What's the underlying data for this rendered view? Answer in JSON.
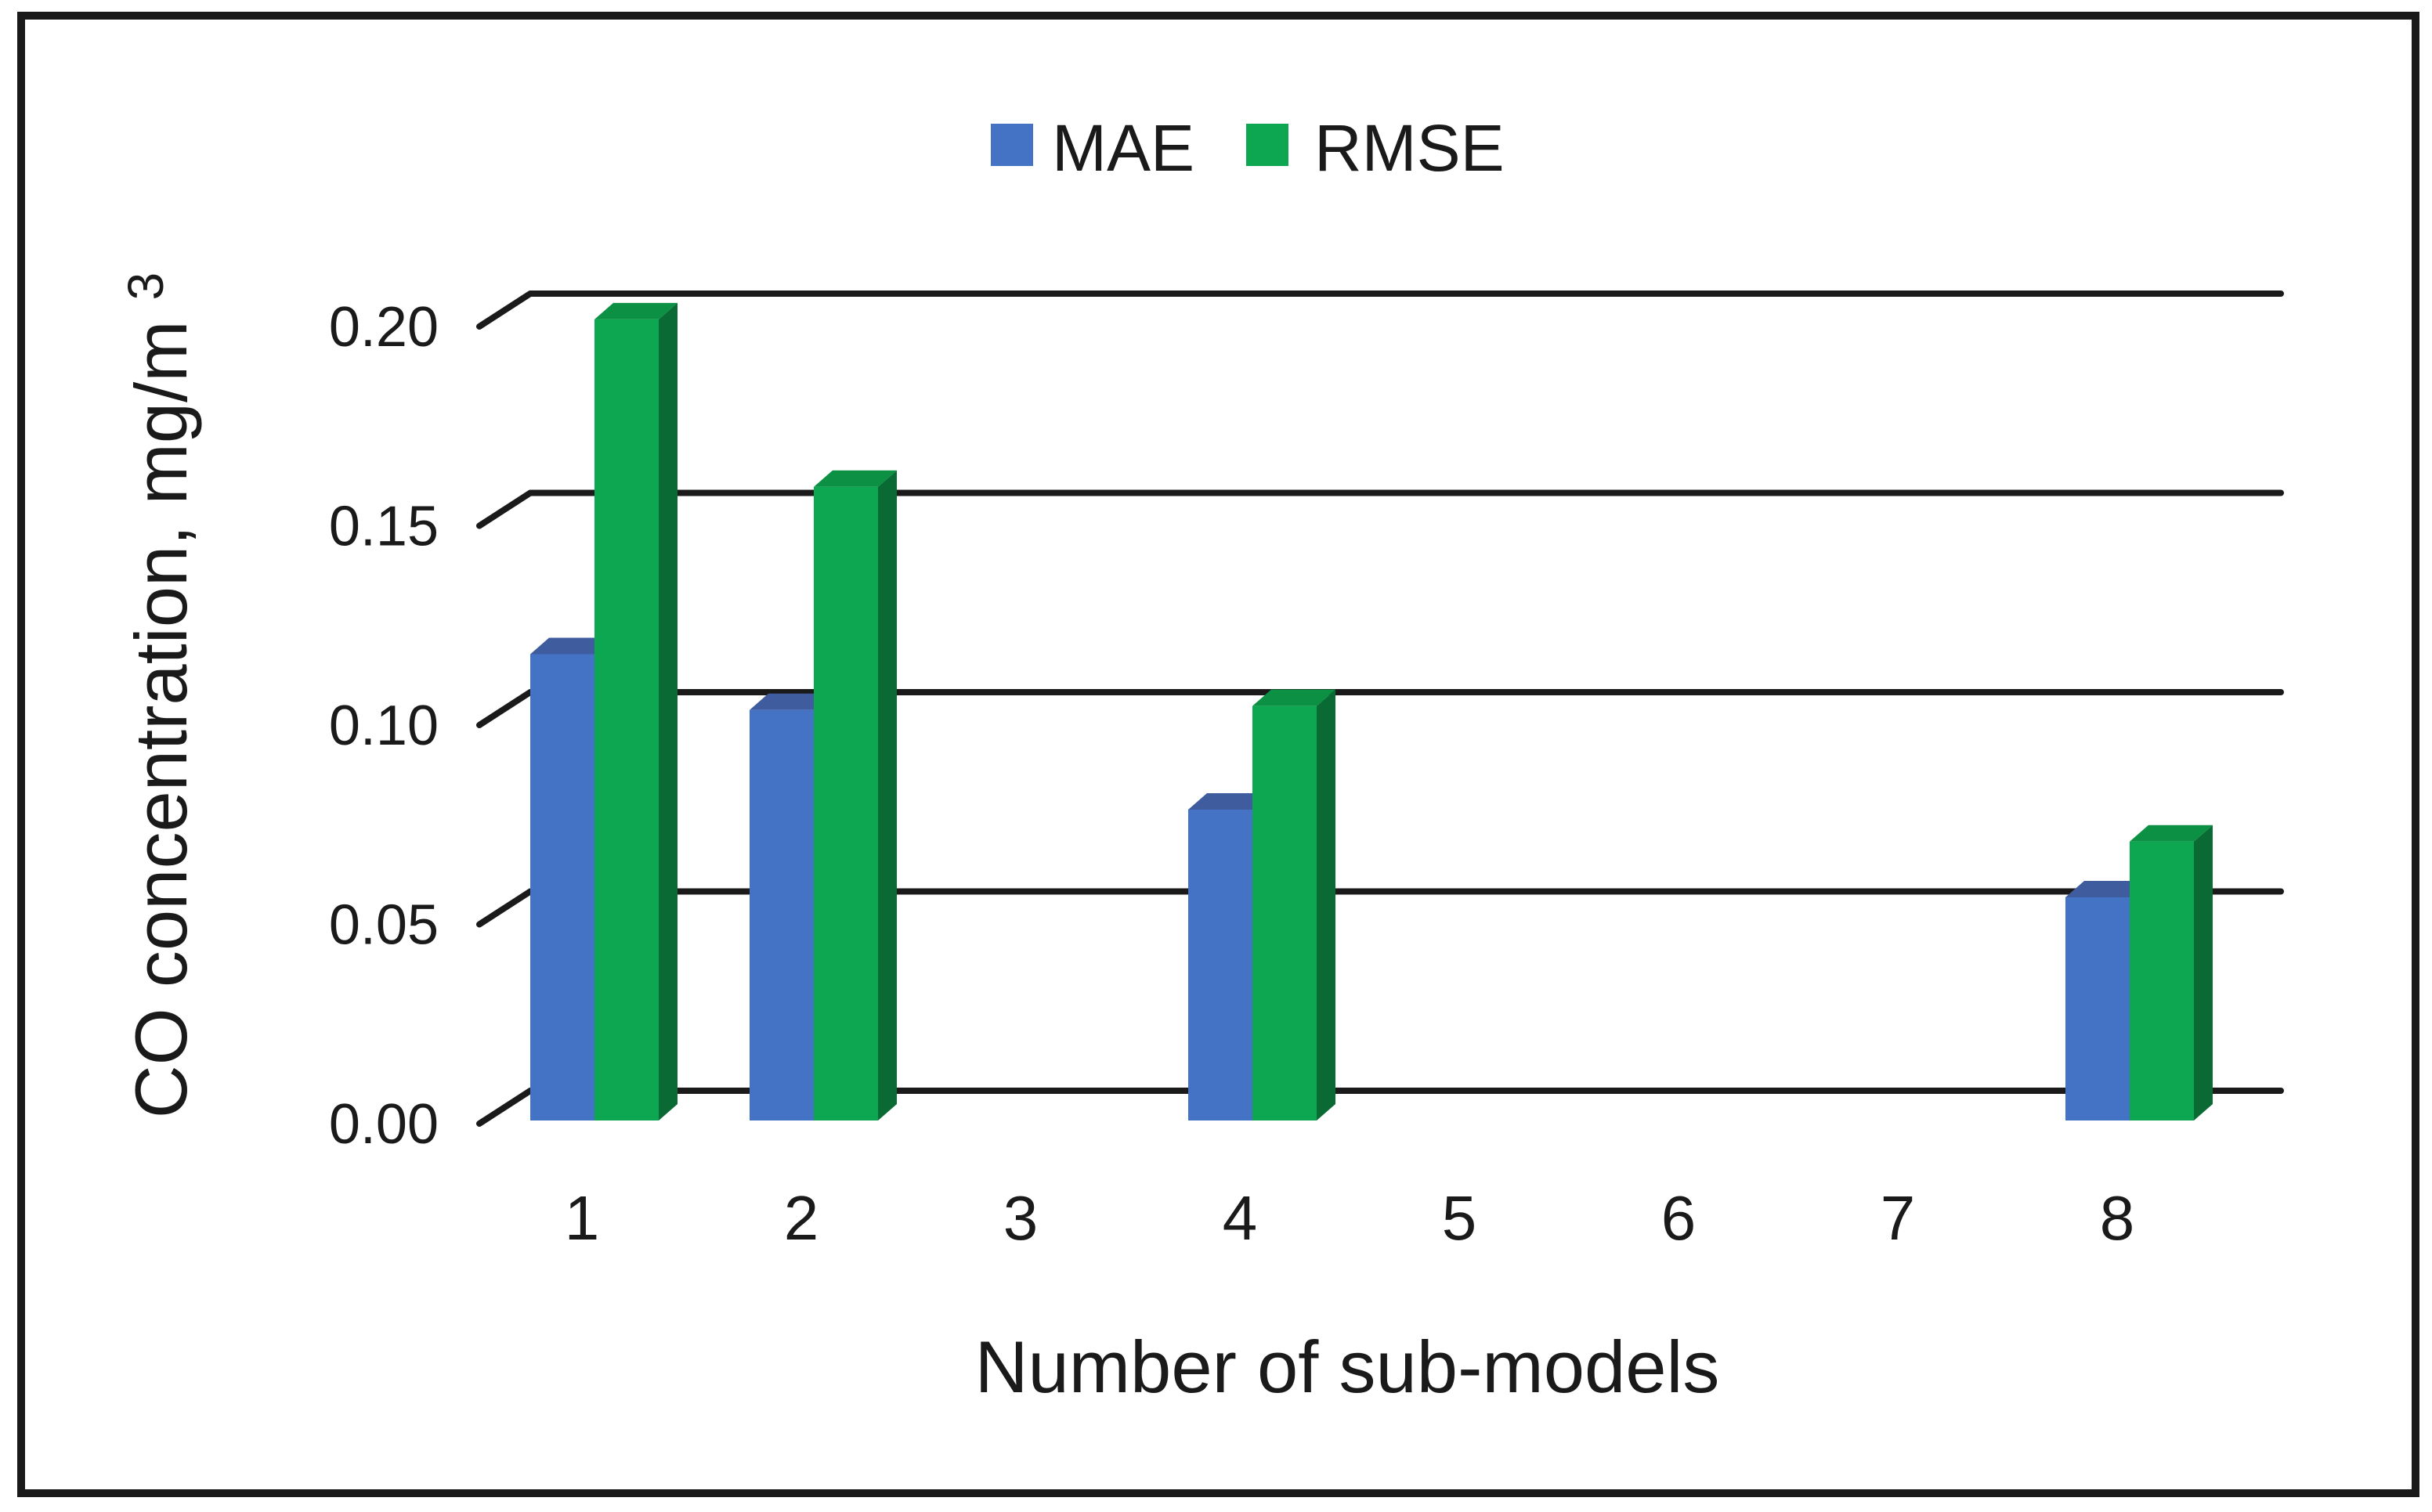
{
  "figure": {
    "background": "#ffffff",
    "border_color": "#1a1a1a"
  },
  "chart_data": {
    "type": "bar",
    "style": "3d-clustered-column",
    "title": "",
    "xlabel": "Number of sub-models",
    "ylabel": "CO concentration, mg/m³",
    "ylabel_main": "CO concentration, mg/m",
    "ylabel_superscript": "3",
    "categories": [
      "1",
      "2",
      "3",
      "4",
      "5",
      "6",
      "7",
      "8"
    ],
    "series": [
      {
        "name": "MAE",
        "color": "#4472C4",
        "color_top": "#3E5C9E",
        "color_side": "#2E4C86",
        "values": [
          0.117,
          0.103,
          null,
          0.078,
          null,
          null,
          null,
          0.056
        ]
      },
      {
        "name": "RMSE",
        "color": "#0CA750",
        "color_top": "#0C9144",
        "color_side": "#0A6A34",
        "values": [
          0.201,
          0.159,
          null,
          0.104,
          null,
          null,
          null,
          0.07
        ]
      }
    ],
    "yticks": [
      "0.00",
      "0.05",
      "0.10",
      "0.15",
      "0.20"
    ],
    "ylim": [
      0,
      0.2
    ],
    "grid": true,
    "legend_position": "top-center"
  }
}
